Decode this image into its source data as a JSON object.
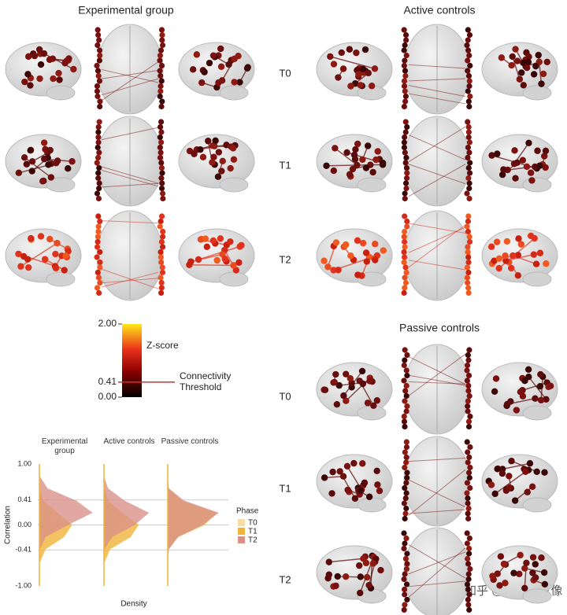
{
  "panels": {
    "experimental": "Experimental group",
    "active": "Active controls",
    "passive": "Passive controls"
  },
  "rows": [
    "T0",
    "T1",
    "T2"
  ],
  "colorbar": {
    "title": "Z-score",
    "lim": [
      0,
      2
    ],
    "ticks": [
      {
        "value": 2,
        "label": "2.00"
      },
      {
        "value": 0.41,
        "label": "0.41"
      },
      {
        "value": 0,
        "label": "0.00"
      }
    ],
    "threshold_label": [
      "Connectivity",
      "Threshold"
    ]
  },
  "watermark": "知乎 @功能脑成像",
  "chart_data": {
    "type": "density",
    "ylabel": "Correlation",
    "xlabel": "Density",
    "legend_title": "Phase",
    "ylim": [
      -1,
      1
    ],
    "yticks": [
      {
        "value": 1,
        "label": "1.00"
      },
      {
        "value": 0.41,
        "label": "0.41"
      },
      {
        "value": 0,
        "label": "0.00"
      },
      {
        "value": -0.41,
        "label": "-0.41"
      },
      {
        "value": -1,
        "label": "-1.00"
      }
    ],
    "xlim": [
      0,
      3
    ],
    "y": [
      -0.6,
      -0.4,
      -0.2,
      0,
      0.2,
      0.4,
      0.6,
      0.8
    ],
    "series": [
      {
        "name": "T0",
        "color": "#f6dca6"
      },
      {
        "name": "T1",
        "color": "#f0b43a"
      },
      {
        "name": "T2",
        "color": "#d9928a"
      }
    ],
    "facets": [
      {
        "title": "Experimental group",
        "values": [
          [
            0,
            0.05,
            0.3,
            1.0,
            0.6,
            0.1,
            0,
            0
          ],
          [
            0.05,
            0.3,
            1.2,
            1.6,
            0.9,
            0.2,
            0.02,
            0
          ],
          [
            0,
            0.02,
            0.3,
            1.4,
            2.6,
            1.8,
            0.4,
            0.02
          ]
        ]
      },
      {
        "title": "Active controls",
        "values": [
          [
            0,
            0.05,
            0.3,
            1.1,
            0.8,
            0.2,
            0,
            0
          ],
          [
            0.05,
            0.3,
            1.3,
            1.7,
            0.9,
            0.2,
            0.02,
            0
          ],
          [
            0,
            0.02,
            0.4,
            1.5,
            2.2,
            1.0,
            0.2,
            0
          ]
        ]
      },
      {
        "title": "Passive controls",
        "values": [
          [
            0,
            0.05,
            0.4,
            1.6,
            2.2,
            0.6,
            0.05,
            0
          ],
          [
            0,
            0.05,
            0.5,
            1.8,
            2.4,
            0.7,
            0.05,
            0
          ],
          [
            0,
            0.05,
            0.5,
            1.7,
            2.5,
            0.8,
            0.05,
            0
          ]
        ]
      }
    ]
  }
}
